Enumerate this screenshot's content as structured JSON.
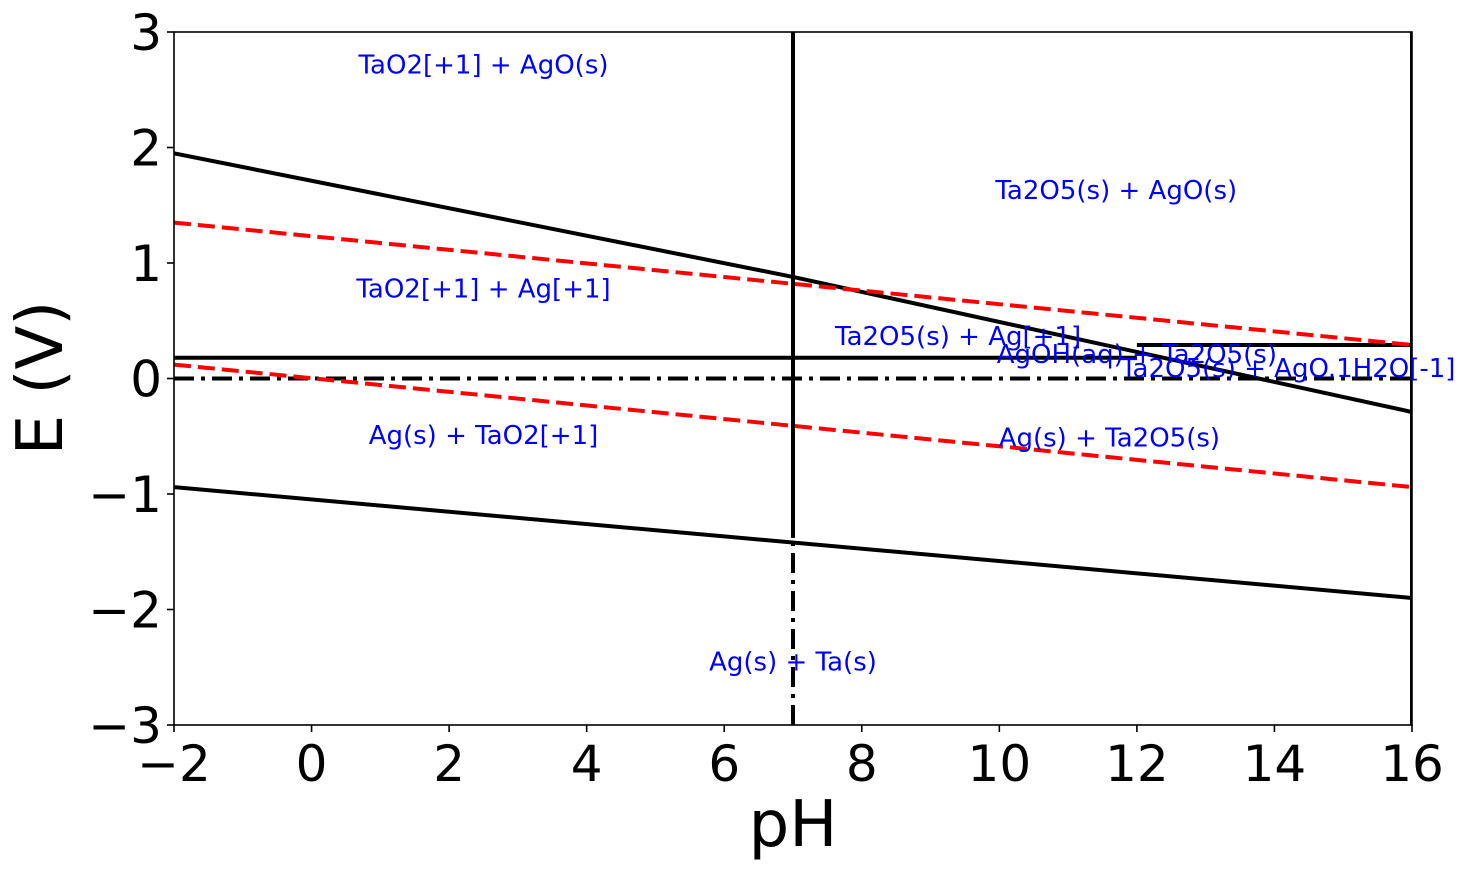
{
  "chart_data": {
    "type": "line",
    "title": "",
    "xlabel": "pH",
    "ylabel": "E (V)",
    "xlim": [
      -2,
      16
    ],
    "ylim": [
      -3,
      3
    ],
    "grid": false,
    "legend": "none",
    "x_ticks": [
      -2,
      0,
      2,
      4,
      6,
      8,
      10,
      12,
      14,
      16
    ],
    "y_ticks": [
      -3,
      -2,
      -1,
      0,
      1,
      2,
      3
    ],
    "x_tick_labels": [
      "−2",
      "0",
      "2",
      "4",
      "6",
      "8",
      "10",
      "12",
      "14",
      "16"
    ],
    "y_tick_labels": [
      "−3",
      "−2",
      "−1",
      "0",
      "1",
      "2",
      "3"
    ],
    "colors": {
      "boundary": "#000000",
      "water": "#ff0000",
      "label": "#0000ff"
    },
    "series": [
      {
        "style": "solid",
        "color": "#000000",
        "points": [
          [
            -2,
            1.95
          ],
          [
            7,
            0.88
          ],
          [
            16,
            -0.29
          ]
        ]
      },
      {
        "style": "solid",
        "color": "#000000",
        "points": [
          [
            -2,
            0.18
          ],
          [
            12,
            0.18
          ]
        ]
      },
      {
        "style": "solid",
        "color": "#000000",
        "points": [
          [
            12,
            0.29
          ],
          [
            16,
            0.29
          ]
        ]
      },
      {
        "style": "solid",
        "color": "#000000",
        "points": [
          [
            -2,
            -0.94
          ],
          [
            16,
            -1.9
          ]
        ]
      },
      {
        "style": "solid",
        "color": "#000000",
        "points": [
          [
            7,
            -1.38
          ],
          [
            7,
            3
          ]
        ]
      },
      {
        "style": "dashdot",
        "color": "#000000",
        "points": [
          [
            7,
            -3
          ],
          [
            7,
            -1.38
          ]
        ]
      },
      {
        "style": "dashdot",
        "color": "#000000",
        "points": [
          [
            -2,
            0
          ],
          [
            16,
            0
          ]
        ]
      },
      {
        "style": "dashed",
        "color": "#ff0000",
        "points": [
          [
            -2,
            1.35
          ],
          [
            16,
            0.29
          ]
        ]
      },
      {
        "style": "dashed",
        "color": "#ff0000",
        "points": [
          [
            -2,
            0.12
          ],
          [
            16,
            -0.94
          ]
        ]
      },
      {
        "style": "solid",
        "color": "#000000",
        "points": [
          [
            16,
            -3
          ],
          [
            16,
            3
          ]
        ]
      }
    ],
    "annotations": [
      {
        "text": "TaO2[+1] + AgO(s)",
        "x": 2.5,
        "y": 2.72,
        "anchor": "middle"
      },
      {
        "text": "Ta2O5(s) + AgO(s)",
        "x": 11.7,
        "y": 1.63,
        "anchor": "middle"
      },
      {
        "text": "TaO2[+1] + Ag[+1]",
        "x": 2.5,
        "y": 0.78,
        "anchor": "middle"
      },
      {
        "text": "Ta2O5(s) + Ag[+1]",
        "x": 9.4,
        "y": 0.37,
        "anchor": "middle"
      },
      {
        "text": "AgOH(aq) + Ta2O5(s)",
        "x": 12.0,
        "y": 0.21,
        "anchor": "middle"
      },
      {
        "text": "Ta2O5(s) + AgO.1H2O[-1]",
        "x": 14.2,
        "y": 0.09,
        "anchor": "middle"
      },
      {
        "text": "Ag(s) + TaO2[+1]",
        "x": 2.5,
        "y": -0.49,
        "anchor": "middle"
      },
      {
        "text": "Ag(s) + Ta2O5(s)",
        "x": 11.6,
        "y": -0.51,
        "anchor": "middle"
      },
      {
        "text": "Ag(s) + Ta(s)",
        "x": 7.0,
        "y": -2.45,
        "anchor": "middle"
      }
    ]
  }
}
